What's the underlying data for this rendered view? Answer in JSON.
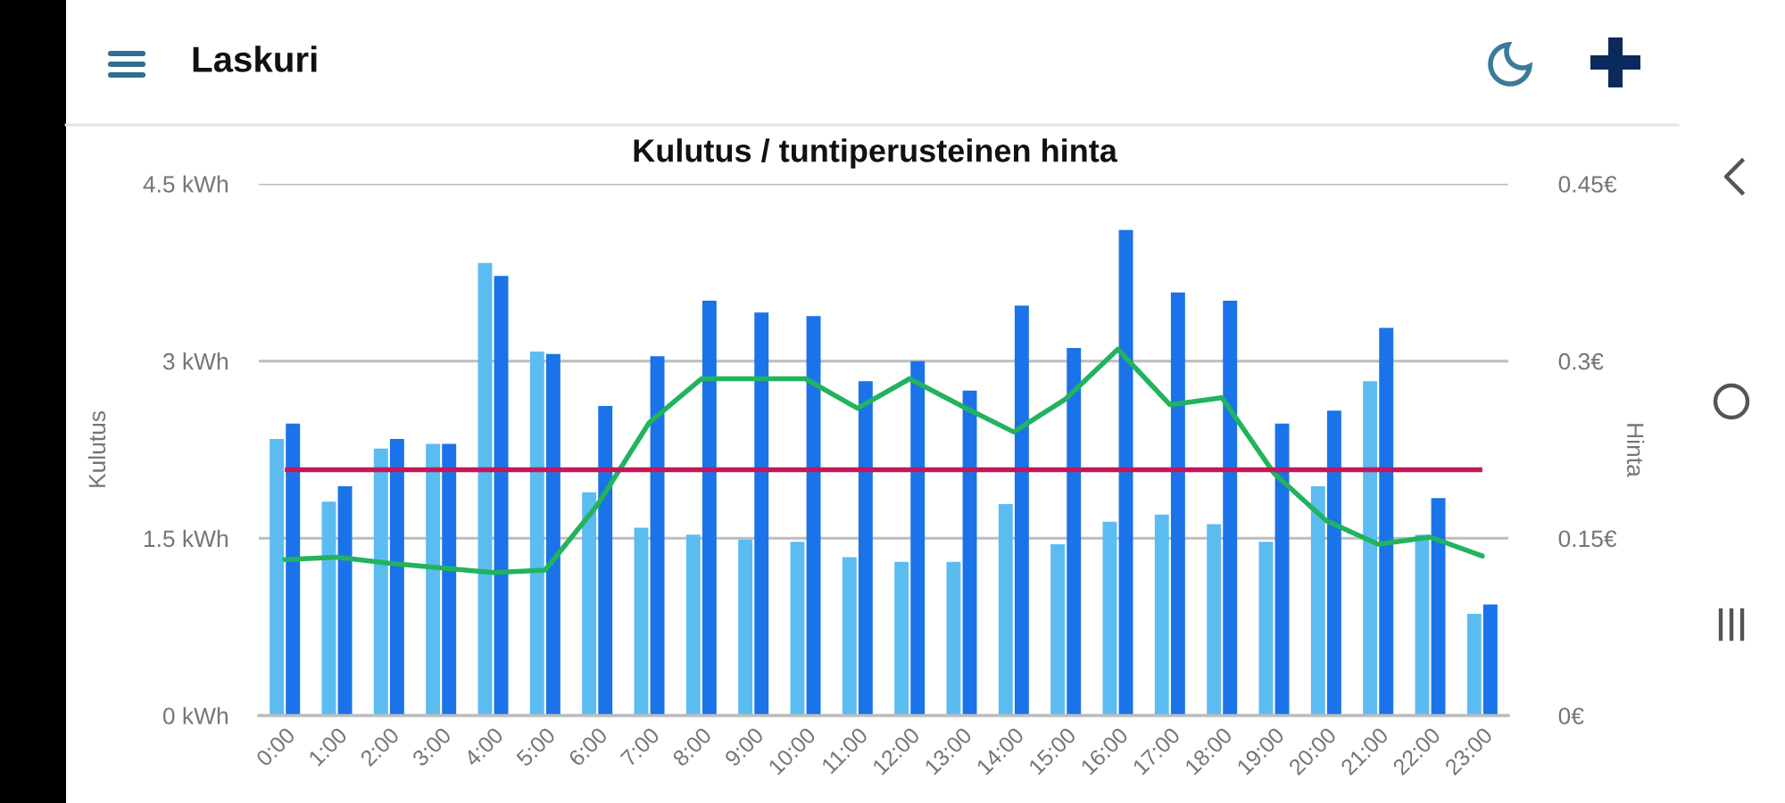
{
  "chart_data": {
    "type": "bar",
    "title": "Kulutus / tuntiperusteinen hinta",
    "ylabel": "Kulutus",
    "y2label": "Hinta",
    "annotations": [
      "Laskuri"
    ],
    "categories": [
      "0:00",
      "1:00",
      "2:00",
      "3:00",
      "4:00",
      "5:00",
      "6:00",
      "7:00",
      "8:00",
      "9:00",
      "10:00",
      "11:00",
      "12:00",
      "13:00",
      "14:00",
      "15:00",
      "16:00",
      "17:00",
      "18:00",
      "19:00",
      "20:00",
      "21:00",
      "22:00",
      "23:00"
    ],
    "series": [
      {
        "color": "#5bbcf2",
        "values": [
          2.34,
          1.81,
          2.26,
          2.3,
          3.83,
          3.08,
          1.89,
          1.59,
          1.53,
          1.49,
          1.47,
          1.34,
          1.3,
          1.3,
          1.79,
          1.45,
          1.64,
          1.7,
          1.62,
          1.47,
          1.94,
          2.83,
          1.53,
          0.86
        ]
      },
      {
        "color": "#1a73e8",
        "values": [
          2.47,
          1.94,
          2.34,
          2.3,
          3.72,
          3.06,
          2.62,
          3.04,
          3.51,
          3.41,
          3.38,
          2.83,
          3.0,
          2.75,
          3.47,
          3.11,
          4.11,
          3.58,
          3.51,
          2.47,
          2.58,
          3.28,
          1.84,
          0.94
        ]
      },
      {
        "type": "line",
        "axis": "y2",
        "color": "#22b35e",
        "values": [
          0.132,
          0.134,
          0.129,
          0.125,
          0.121,
          0.123,
          0.178,
          0.248,
          0.285,
          0.285,
          0.285,
          0.26,
          0.285,
          0.262,
          0.24,
          0.268,
          0.31,
          0.263,
          0.269,
          0.205,
          0.165,
          0.145,
          0.151,
          0.135
        ]
      }
    ],
    "ref_lines": [
      {
        "axis": "y2",
        "value": 0.208,
        "color": "#c2185b"
      }
    ],
    "ylim": [
      0,
      4.5
    ],
    "yticks": [
      {
        "value": 0,
        "label": "0 kWh"
      },
      {
        "value": 1.5,
        "label": "1.5 kWh"
      },
      {
        "value": 3,
        "label": "3 kWh"
      },
      {
        "value": 4.5,
        "label": "4.5 kWh"
      }
    ],
    "y2lim": [
      0,
      0.45
    ],
    "y2ticks": [
      {
        "value": 0,
        "label": "0€"
      },
      {
        "value": 0.15,
        "label": "0.15€"
      },
      {
        "value": 0.3,
        "label": "0.3€"
      },
      {
        "value": 0.45,
        "label": "0.45€"
      }
    ],
    "grid": "y"
  }
}
